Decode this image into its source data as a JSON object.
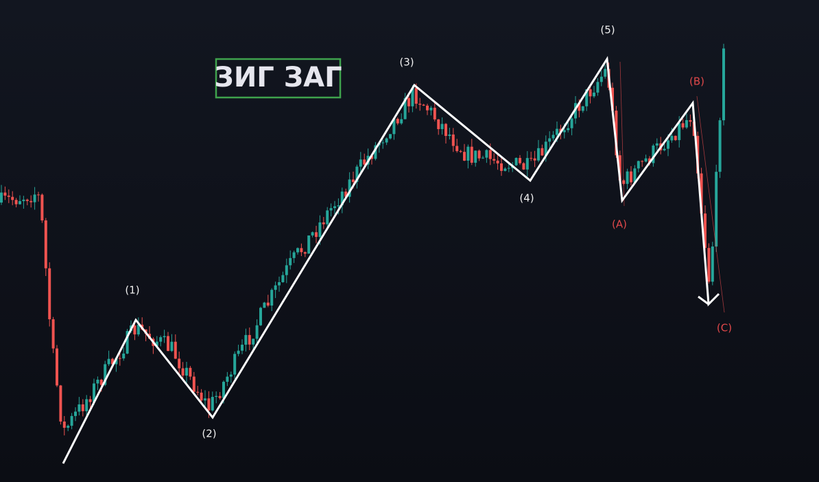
{
  "title": "ЗИГ ЗАГ",
  "impulse_labels": [
    "(1)",
    "(2)",
    "(3)",
    "(4)",
    "(5)"
  ],
  "correction_labels": [
    "(A)",
    "(B)",
    "(C)"
  ]
}
